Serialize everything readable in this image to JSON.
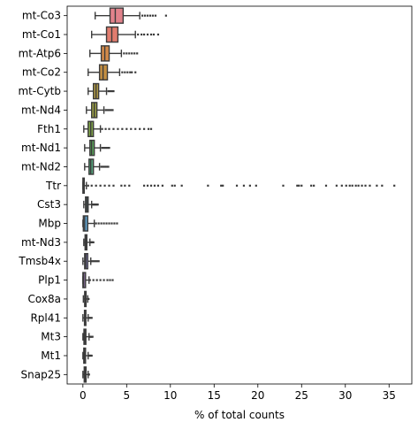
{
  "chart_data": {
    "type": "boxplot",
    "orientation": "horizontal",
    "xlabel": "% of total counts",
    "ylabel": "",
    "title": "",
    "xlim": [
      -1.8,
      37.6
    ],
    "xticks": [
      0,
      5,
      10,
      15,
      20,
      25,
      30,
      35
    ],
    "grid": false,
    "legend": "none",
    "genes": [
      {
        "name": "mt-Co3",
        "color": "#e1828b",
        "whisker_low": 1.4,
        "q1": 3.1,
        "median": 3.7,
        "q3": 4.6,
        "whisker_high": 6.5,
        "outliers": [
          6.8,
          7.1,
          7.4,
          7.7,
          8.0,
          8.3,
          9.5
        ]
      },
      {
        "name": "mt-Co1",
        "color": "#e17c6e",
        "whisker_low": 1.0,
        "q1": 2.7,
        "median": 3.3,
        "q3": 4.0,
        "whisker_high": 6.0,
        "outliers": [
          6.3,
          6.7,
          7.0,
          7.4,
          7.8,
          8.1,
          8.6
        ]
      },
      {
        "name": "mt-Atp6",
        "color": "#d48b4b",
        "whisker_low": 0.8,
        "q1": 2.1,
        "median": 2.5,
        "q3": 3.0,
        "whisker_high": 4.4,
        "outliers": [
          4.7,
          5.0,
          5.3,
          5.6,
          5.9,
          6.2
        ]
      },
      {
        "name": "mt-Co2",
        "color": "#c48f42",
        "whisker_low": 0.6,
        "q1": 1.9,
        "median": 2.3,
        "q3": 2.8,
        "whisker_high": 4.2,
        "outliers": [
          4.5,
          4.8,
          5.1,
          5.4,
          5.6,
          6.0
        ]
      },
      {
        "name": "mt-Cytb",
        "color": "#b19a45",
        "whisker_low": 0.6,
        "q1": 1.2,
        "median": 1.5,
        "q3": 1.8,
        "whisker_high": 2.7,
        "outliers": [
          2.9,
          3.1,
          3.3,
          3.5
        ]
      },
      {
        "name": "mt-Nd4",
        "color": "#9ca044",
        "whisker_low": 0.4,
        "q1": 1.0,
        "median": 1.3,
        "q3": 1.6,
        "whisker_high": 2.4,
        "outliers": [
          2.6,
          2.8,
          3.0,
          3.2,
          3.4
        ]
      },
      {
        "name": "Fth1",
        "color": "#7fa349",
        "whisker_low": 0.1,
        "q1": 0.6,
        "median": 0.9,
        "q3": 1.2,
        "whisker_high": 2.0,
        "outliers": [
          2.2,
          2.6,
          3.0,
          3.5,
          4.0,
          4.5,
          5.0,
          5.5,
          6.0,
          6.5,
          7.0,
          7.5,
          7.8
        ]
      },
      {
        "name": "mt-Nd1",
        "color": "#5aa65a",
        "whisker_low": 0.2,
        "q1": 0.8,
        "median": 1.0,
        "q3": 1.3,
        "whisker_high": 2.0,
        "outliers": [
          2.2,
          2.4,
          2.6,
          2.8,
          3.0
        ]
      },
      {
        "name": "mt-Nd2",
        "color": "#55a57c",
        "whisker_low": 0.2,
        "q1": 0.7,
        "median": 0.9,
        "q3": 1.2,
        "whisker_high": 1.9,
        "outliers": [
          2.1,
          2.3,
          2.5,
          2.7,
          2.9
        ]
      },
      {
        "name": "Ttr",
        "color": "#5aa49a",
        "whisker_low": 0.0,
        "q1": 0.0,
        "median": 0.05,
        "q3": 0.15,
        "whisker_high": 0.4,
        "outliers": [
          0.6,
          1.0,
          1.5,
          2.0,
          2.5,
          3.0,
          3.5,
          4.4,
          4.8,
          5.3,
          7.0,
          7.4,
          7.8,
          8.2,
          8.6,
          9.1,
          10.2,
          10.5,
          11.3,
          14.3,
          15.8,
          16.0,
          17.6,
          18.4,
          19.1,
          19.8,
          22.9,
          24.5,
          24.7,
          25.0,
          26.1,
          26.4,
          27.8,
          29.0,
          29.6,
          30.1,
          30.5,
          30.8,
          31.2,
          31.5,
          31.9,
          32.3,
          32.8,
          33.6,
          34.2,
          35.6
        ]
      },
      {
        "name": "Cst3",
        "color": "#5ba3b4",
        "whisker_low": 0.1,
        "q1": 0.3,
        "median": 0.45,
        "q3": 0.6,
        "whisker_high": 1.0,
        "outliers": [
          1.1,
          1.2,
          1.3,
          1.4,
          1.5,
          1.6,
          1.7
        ]
      },
      {
        "name": "Mbp",
        "color": "#5f9ec7",
        "whisker_low": 0.0,
        "q1": 0.05,
        "median": 0.2,
        "q3": 0.55,
        "whisker_high": 1.3,
        "outliers": [
          1.5,
          1.8,
          2.1,
          2.4,
          2.7,
          3.0,
          3.3,
          3.6,
          3.9
        ]
      },
      {
        "name": "mt-Nd3",
        "color": "#7b98d6",
        "whisker_low": 0.1,
        "q1": 0.25,
        "median": 0.35,
        "q3": 0.45,
        "whisker_high": 0.8,
        "outliers": [
          0.9,
          1.0,
          1.1,
          1.2
        ]
      },
      {
        "name": "Tmsb4x",
        "color": "#9b91d8",
        "whisker_low": 0.0,
        "q1": 0.2,
        "median": 0.35,
        "q3": 0.55,
        "whisker_high": 0.9,
        "outliers": [
          1.0,
          1.2,
          1.4,
          1.6,
          1.8
        ]
      },
      {
        "name": "Plp1",
        "color": "#b68bd6",
        "whisker_low": 0.0,
        "q1": 0.0,
        "median": 0.1,
        "q3": 0.3,
        "whisker_high": 0.7,
        "outliers": [
          0.8,
          1.2,
          1.6,
          2.0,
          2.4,
          2.8,
          3.1,
          3.4
        ]
      },
      {
        "name": "Cox8a",
        "color": "#cf85cc",
        "whisker_low": 0.05,
        "q1": 0.2,
        "median": 0.28,
        "q3": 0.36,
        "whisker_high": 0.55,
        "outliers": [
          0.6,
          0.65
        ]
      },
      {
        "name": "Rpl41",
        "color": "#d984bb",
        "whisker_low": 0.0,
        "q1": 0.18,
        "median": 0.25,
        "q3": 0.34,
        "whisker_high": 0.6,
        "outliers": [
          0.7,
          0.85,
          1.0
        ]
      },
      {
        "name": "Mt3",
        "color": "#db85a7",
        "whisker_low": 0.0,
        "q1": 0.12,
        "median": 0.22,
        "q3": 0.34,
        "whisker_high": 0.7,
        "outliers": [
          0.8,
          0.9,
          1.0,
          1.1
        ]
      },
      {
        "name": "Mt1",
        "color": "#dd869a",
        "whisker_low": 0.0,
        "q1": 0.1,
        "median": 0.2,
        "q3": 0.3,
        "whisker_high": 0.6,
        "outliers": [
          0.7,
          0.8,
          0.9,
          1.0
        ]
      },
      {
        "name": "Snap25",
        "color": "#c97f8a",
        "whisker_low": 0.0,
        "q1": 0.15,
        "median": 0.25,
        "q3": 0.36,
        "whisker_high": 0.6,
        "outliers": [
          0.65,
          0.7
        ]
      }
    ]
  }
}
